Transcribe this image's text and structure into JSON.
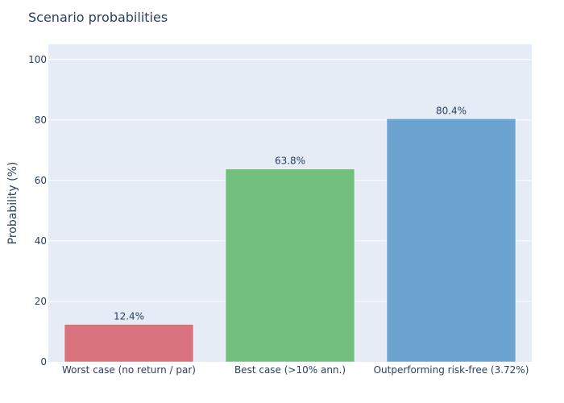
{
  "chart_data": {
    "type": "bar",
    "title": "Scenario probabilities",
    "xlabel": "",
    "ylabel": "Probability (%)",
    "categories": [
      "Worst case (no return / par)",
      "Best case (>10% ann.)",
      "Outperforming risk-free (3.72%)"
    ],
    "values": [
      12.4,
      63.8,
      80.4
    ],
    "data_labels": [
      "12.4%",
      "63.8%",
      "80.4%"
    ],
    "colors": [
      "#d9737d",
      "#72bf7e",
      "#6ba3d1"
    ],
    "ylim": [
      0,
      105
    ],
    "yticks": [
      0,
      20,
      40,
      60,
      80,
      100
    ],
    "grid": true,
    "legend": "none",
    "plot_bgcolor": "#e5ecf6"
  }
}
